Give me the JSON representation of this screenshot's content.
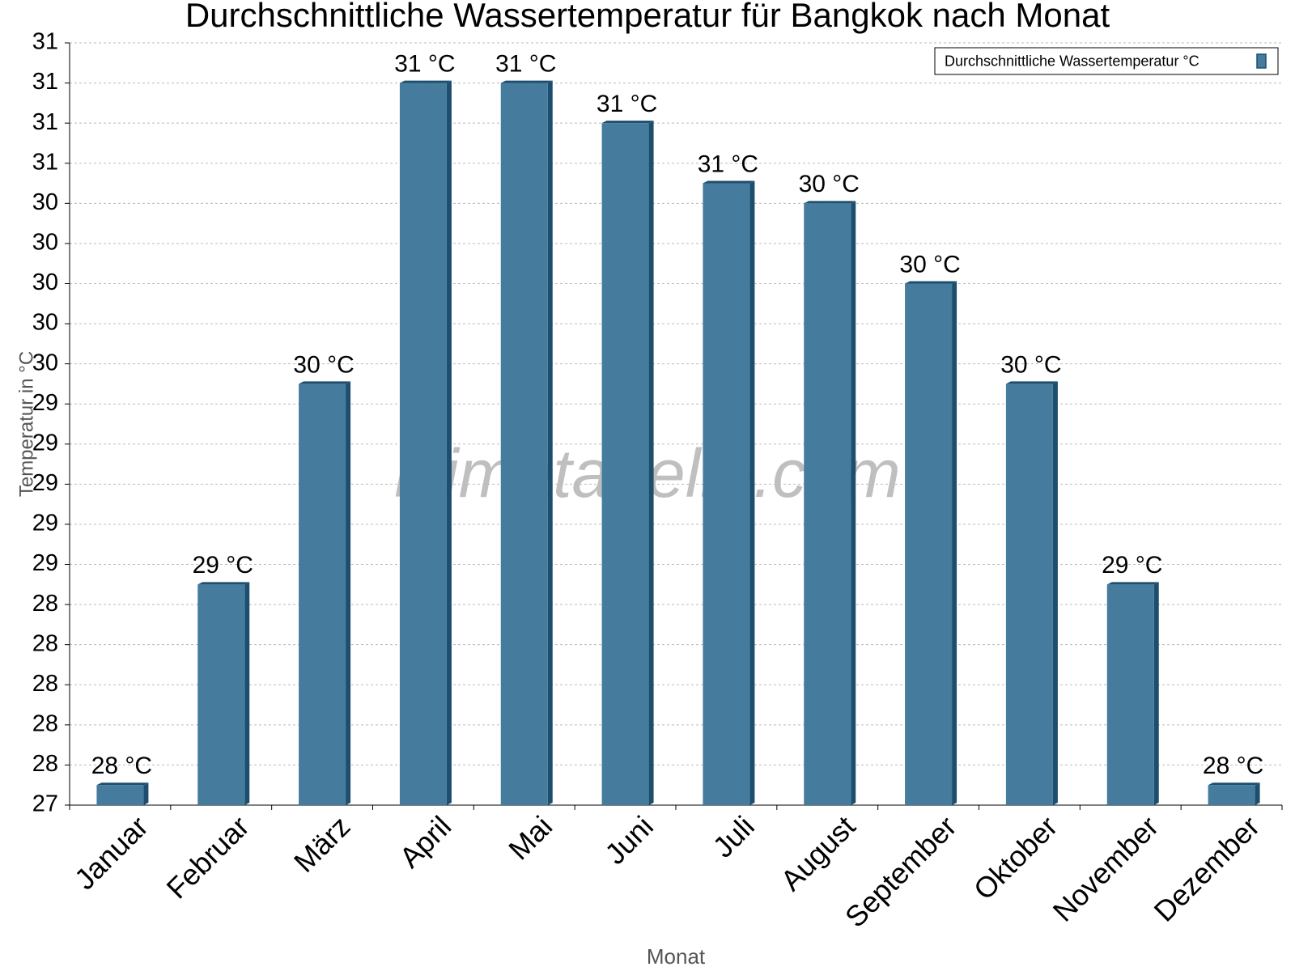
{
  "chart_data": {
    "type": "bar",
    "title": "Durchschnittliche Wassertemperatur für Bangkok nach Monat",
    "watermark": "klimatabelle.com",
    "x_label": "Monat",
    "y_label": "Temperatur in °C",
    "categories": [
      "Januar",
      "Februar",
      "März",
      "April",
      "Mai",
      "Juni",
      "Juli",
      "August",
      "September",
      "Oktober",
      "November",
      "Dezember"
    ],
    "series": [
      {
        "name": "Durchschnittliche Wassertemperatur °C",
        "color": "#457b9d",
        "values": [
          27.5,
          28.5,
          29.5,
          31,
          31,
          30.8,
          30.5,
          30.4,
          30,
          29.5,
          28.5,
          27.5
        ],
        "value_labels": [
          "28 °C",
          "29 °C",
          "30 °C",
          "31 °C",
          "31 °C",
          "31 °C",
          "31 °C",
          "30 °C",
          "30 °C",
          "30 °C",
          "29 °C",
          "28 °C"
        ]
      }
    ],
    "ylim": [
      27.4,
      31.2
    ],
    "yticks": [
      {
        "value": 27.4,
        "label": "27"
      },
      {
        "value": 27.6,
        "label": "28"
      },
      {
        "value": 27.8,
        "label": "28"
      },
      28,
      {
        "value": 28.2,
        "label": "28"
      },
      {
        "value": 28.4,
        "label": "28"
      },
      {
        "value": 28.6,
        "label": "29"
      },
      {
        "value": 28.8,
        "label": "29"
      },
      29,
      {
        "value": 29.2,
        "label": "29"
      },
      {
        "value": 29.4,
        "label": "29"
      },
      {
        "value": 29.6,
        "label": "30"
      },
      {
        "value": 29.8,
        "label": "30"
      },
      30,
      {
        "value": 30.2,
        "label": "30"
      },
      {
        "value": 30.4,
        "label": "30"
      },
      {
        "value": 30.6,
        "label": "31"
      },
      {
        "value": 30.8,
        "label": "31"
      },
      31,
      {
        "value": 31.2,
        "label": "31"
      }
    ],
    "grid": true,
    "legend": "top-right"
  }
}
